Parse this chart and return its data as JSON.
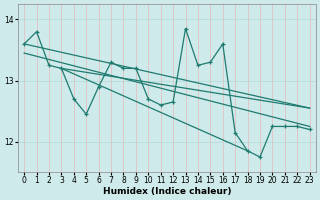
{
  "xlabel": "Humidex (Indice chaleur)",
  "xlim": [
    -0.5,
    23.5
  ],
  "ylim": [
    11.5,
    14.25
  ],
  "yticks": [
    12,
    13,
    14
  ],
  "xticks": [
    0,
    1,
    2,
    3,
    4,
    5,
    6,
    7,
    8,
    9,
    10,
    11,
    12,
    13,
    14,
    15,
    16,
    17,
    18,
    19,
    20,
    21,
    22,
    23
  ],
  "background_color": "#ceeaea",
  "grid_color": "#b0d8d8",
  "line_color": "#1e7b70",
  "zigzag": [
    13.6,
    13.8,
    13.25,
    13.2,
    12.7,
    12.45,
    12.9,
    13.3,
    13.2,
    13.2,
    12.7,
    12.6,
    12.65,
    13.85,
    13.25,
    13.3,
    13.6,
    12.15,
    11.85,
    11.75,
    12.25,
    12.25,
    12.25,
    12.2
  ],
  "trend1_x": [
    0,
    23
  ],
  "trend1_y": [
    13.6,
    12.55
  ],
  "trend2_x": [
    0,
    23
  ],
  "trend2_y": [
    13.45,
    12.25
  ],
  "trend3_x": [
    3,
    23
  ],
  "trend3_y": [
    13.2,
    12.55
  ],
  "trend4_x": [
    3,
    18
  ],
  "trend4_y": [
    13.2,
    11.85
  ]
}
